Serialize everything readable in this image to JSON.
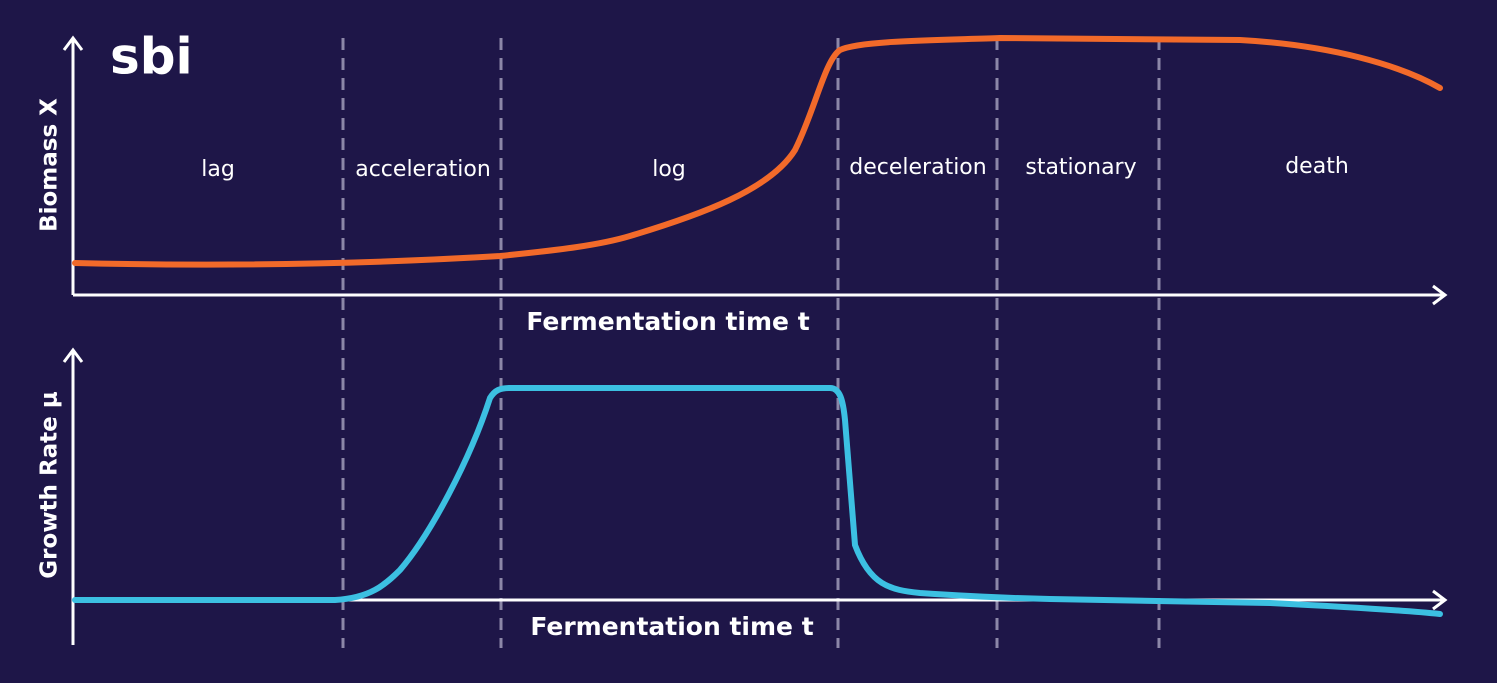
{
  "logo": "sbi",
  "top_chart": {
    "y_label": "Biomass X",
    "x_label": "Fermentation time t"
  },
  "bottom_chart": {
    "y_label": "Growth Rate μ",
    "x_label": "Fermentation time t"
  },
  "phases": [
    "lag",
    "acceleration",
    "log",
    "deceleration",
    "stationary",
    "death"
  ]
}
